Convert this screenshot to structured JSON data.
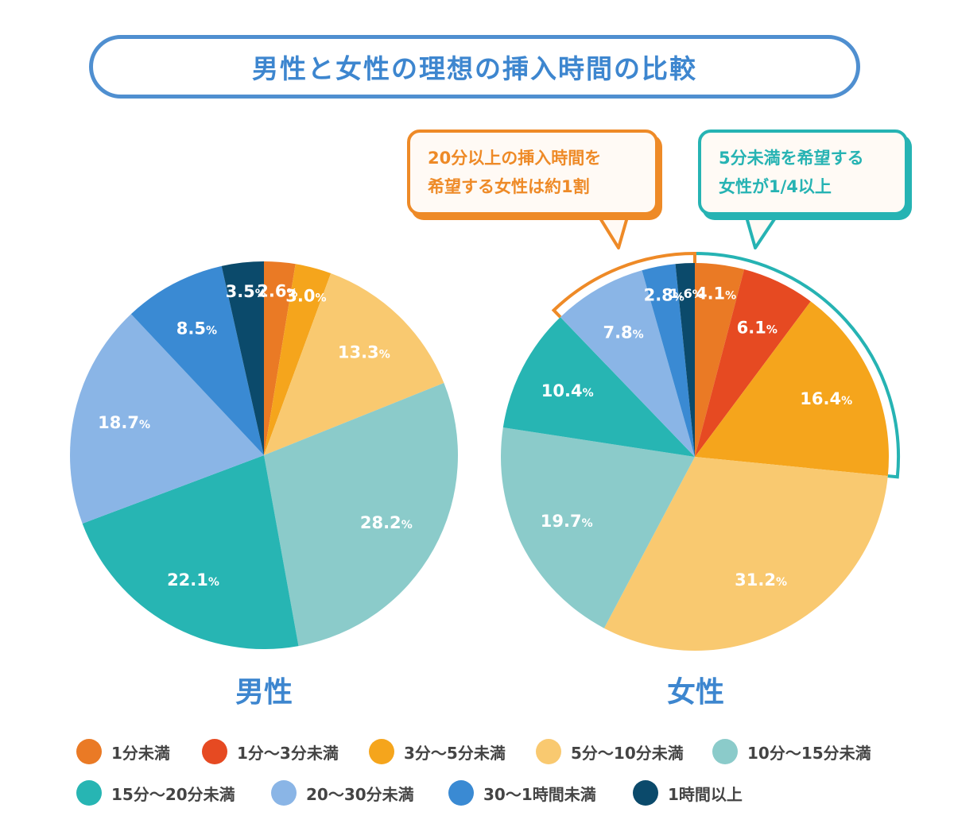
{
  "title": "男性と女性の理想の挿入時間の比較",
  "callouts": {
    "orange": [
      "20分以上の挿入時間を",
      "希望する女性は約1割"
    ],
    "teal": [
      "5分未満を希望する",
      "女性が1/4以上"
    ]
  },
  "legend": [
    {
      "label": "1分未満",
      "color": "#ea7a25"
    },
    {
      "label": "1分～3分未満",
      "color": "#e64a22"
    },
    {
      "label": "3分～5分未満",
      "color": "#f5a51c"
    },
    {
      "label": "5分～10分未満",
      "color": "#f9c970"
    },
    {
      "label": "10分～15分未満",
      "color": "#8bcbca"
    },
    {
      "label": "15分～20分未満",
      "color": "#27b5b3"
    },
    {
      "label": "20～30分未満",
      "color": "#8ab5e6"
    },
    {
      "label": "30～1時間未満",
      "color": "#3a8ad3"
    },
    {
      "label": "1時間以上",
      "color": "#0b4a6b"
    }
  ],
  "chart_data": [
    {
      "type": "pie",
      "title": "男性",
      "categories": [
        "1分未満",
        "1分～3分未満",
        "3分～5分未満",
        "5分～10分未満",
        "10分～15分未満",
        "15分～20分未満",
        "20～30分未満",
        "30～1時間未満",
        "1時間以上"
      ],
      "values": [
        2.6,
        0,
        3.0,
        13.3,
        28.2,
        22.1,
        18.7,
        8.5,
        3.5
      ],
      "labels": [
        "2.6",
        "",
        "3.0",
        "13.3",
        "28.2",
        "22.1",
        "18.7",
        "8.5",
        "3.5"
      ],
      "unit": "%"
    },
    {
      "type": "pie",
      "title": "女性",
      "categories": [
        "1分未満",
        "1分～3分未満",
        "3分～5分未満",
        "5分～10分未満",
        "10分～15分未満",
        "15分～20分未満",
        "20～30分未満",
        "30～1時間未満",
        "1時間以上"
      ],
      "values": [
        4.1,
        6.1,
        16.4,
        31.2,
        19.7,
        10.4,
        7.8,
        2.8,
        1.6
      ],
      "labels": [
        "4.1",
        "6.1",
        "16.4",
        "31.2",
        "19.7",
        "10.4",
        "7.8",
        "2.8",
        "1.6"
      ],
      "unit": "%"
    }
  ]
}
